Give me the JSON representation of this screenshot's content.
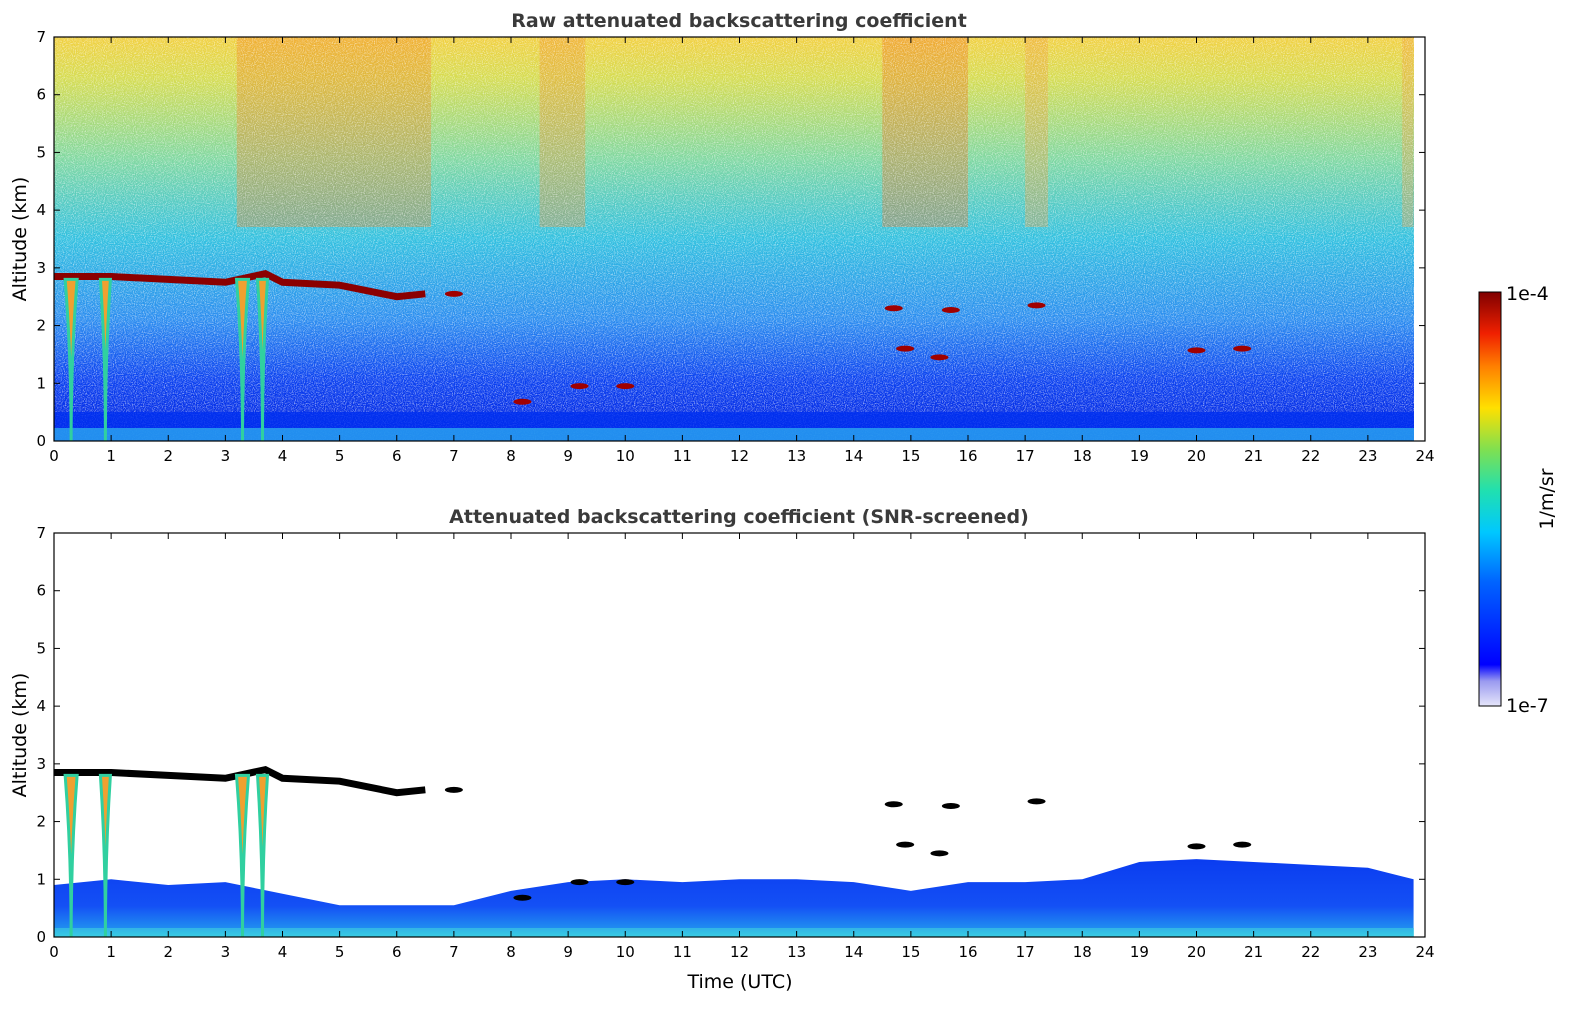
{
  "chart_data": [
    {
      "type": "heatmap",
      "title": "Raw attenuated backscattering coefficient",
      "xlabel": "",
      "ylabel": "Altitude (km)",
      "xlim": [
        0,
        24
      ],
      "ylim": [
        0,
        7
      ],
      "xticks": [
        "0",
        "1",
        "2",
        "3",
        "4",
        "5",
        "6",
        "7",
        "8",
        "9",
        "10",
        "11",
        "12",
        "13",
        "14",
        "15",
        "16",
        "17",
        "18",
        "19",
        "20",
        "21",
        "22",
        "23",
        "24"
      ],
      "yticks": [
        "0",
        "1",
        "2",
        "3",
        "4",
        "5",
        "6",
        "7"
      ],
      "screened": false,
      "cloud_layer_top": [
        [
          0,
          2.85
        ],
        [
          1,
          2.85
        ],
        [
          2,
          2.8
        ],
        [
          3,
          2.75
        ],
        [
          3.7,
          2.9
        ],
        [
          4,
          2.75
        ],
        [
          5,
          2.7
        ],
        [
          6,
          2.5
        ],
        [
          6.5,
          2.55
        ]
      ],
      "cloud_patches": [
        [
          7.0,
          2.55
        ],
        [
          8.2,
          0.68
        ],
        [
          9.2,
          0.95
        ],
        [
          10,
          0.95
        ],
        [
          14.7,
          2.3
        ],
        [
          15.7,
          2.27
        ],
        [
          17.2,
          2.35
        ],
        [
          14.9,
          1.6
        ],
        [
          15.5,
          1.45
        ],
        [
          20,
          1.57
        ],
        [
          20.8,
          1.6
        ]
      ],
      "precip_columns": [
        [
          0.3,
          0.6
        ],
        [
          0.9,
          0.5
        ],
        [
          3.3,
          0.6
        ],
        [
          3.65,
          0.5
        ]
      ]
    },
    {
      "type": "heatmap",
      "title": "Attenuated backscattering coefficient (SNR-screened)",
      "xlabel": "Time (UTC)",
      "ylabel": "Altitude (km)",
      "xlim": [
        0,
        24
      ],
      "ylim": [
        0,
        7
      ],
      "xticks": [
        "0",
        "1",
        "2",
        "3",
        "4",
        "5",
        "6",
        "7",
        "8",
        "9",
        "10",
        "11",
        "12",
        "13",
        "14",
        "15",
        "16",
        "17",
        "18",
        "19",
        "20",
        "21",
        "22",
        "23",
        "24"
      ],
      "yticks": [
        "0",
        "1",
        "2",
        "3",
        "4",
        "5",
        "6",
        "7"
      ],
      "screened": true,
      "boundary_layer_top": [
        [
          0,
          0.9
        ],
        [
          1,
          1.0
        ],
        [
          2,
          0.9
        ],
        [
          3,
          0.95
        ],
        [
          4,
          0.75
        ],
        [
          5,
          0.55
        ],
        [
          6,
          0.55
        ],
        [
          7,
          0.55
        ],
        [
          8,
          0.8
        ],
        [
          9,
          0.95
        ],
        [
          10,
          1.0
        ],
        [
          11,
          0.95
        ],
        [
          12,
          1.0
        ],
        [
          13,
          1.0
        ],
        [
          14,
          0.95
        ],
        [
          15,
          0.8
        ],
        [
          16,
          0.95
        ],
        [
          17,
          0.95
        ],
        [
          18,
          1.0
        ],
        [
          19,
          1.3
        ],
        [
          20,
          1.35
        ],
        [
          21,
          1.3
        ],
        [
          22,
          1.25
        ],
        [
          23,
          1.2
        ],
        [
          23.8,
          1.0
        ]
      ]
    }
  ],
  "colorbar": {
    "label": "1/m/sr",
    "max_label": "1e-4",
    "min_label": "1e-7",
    "colors": [
      "#e6e6fa",
      "#b0b0f0",
      "#6464ff",
      "#0000ff",
      "#0050ff",
      "#00a0ff",
      "#00e0e0",
      "#40e080",
      "#a0e040",
      "#ffe000",
      "#ffa000",
      "#ff4000",
      "#d00000",
      "#800000"
    ]
  }
}
